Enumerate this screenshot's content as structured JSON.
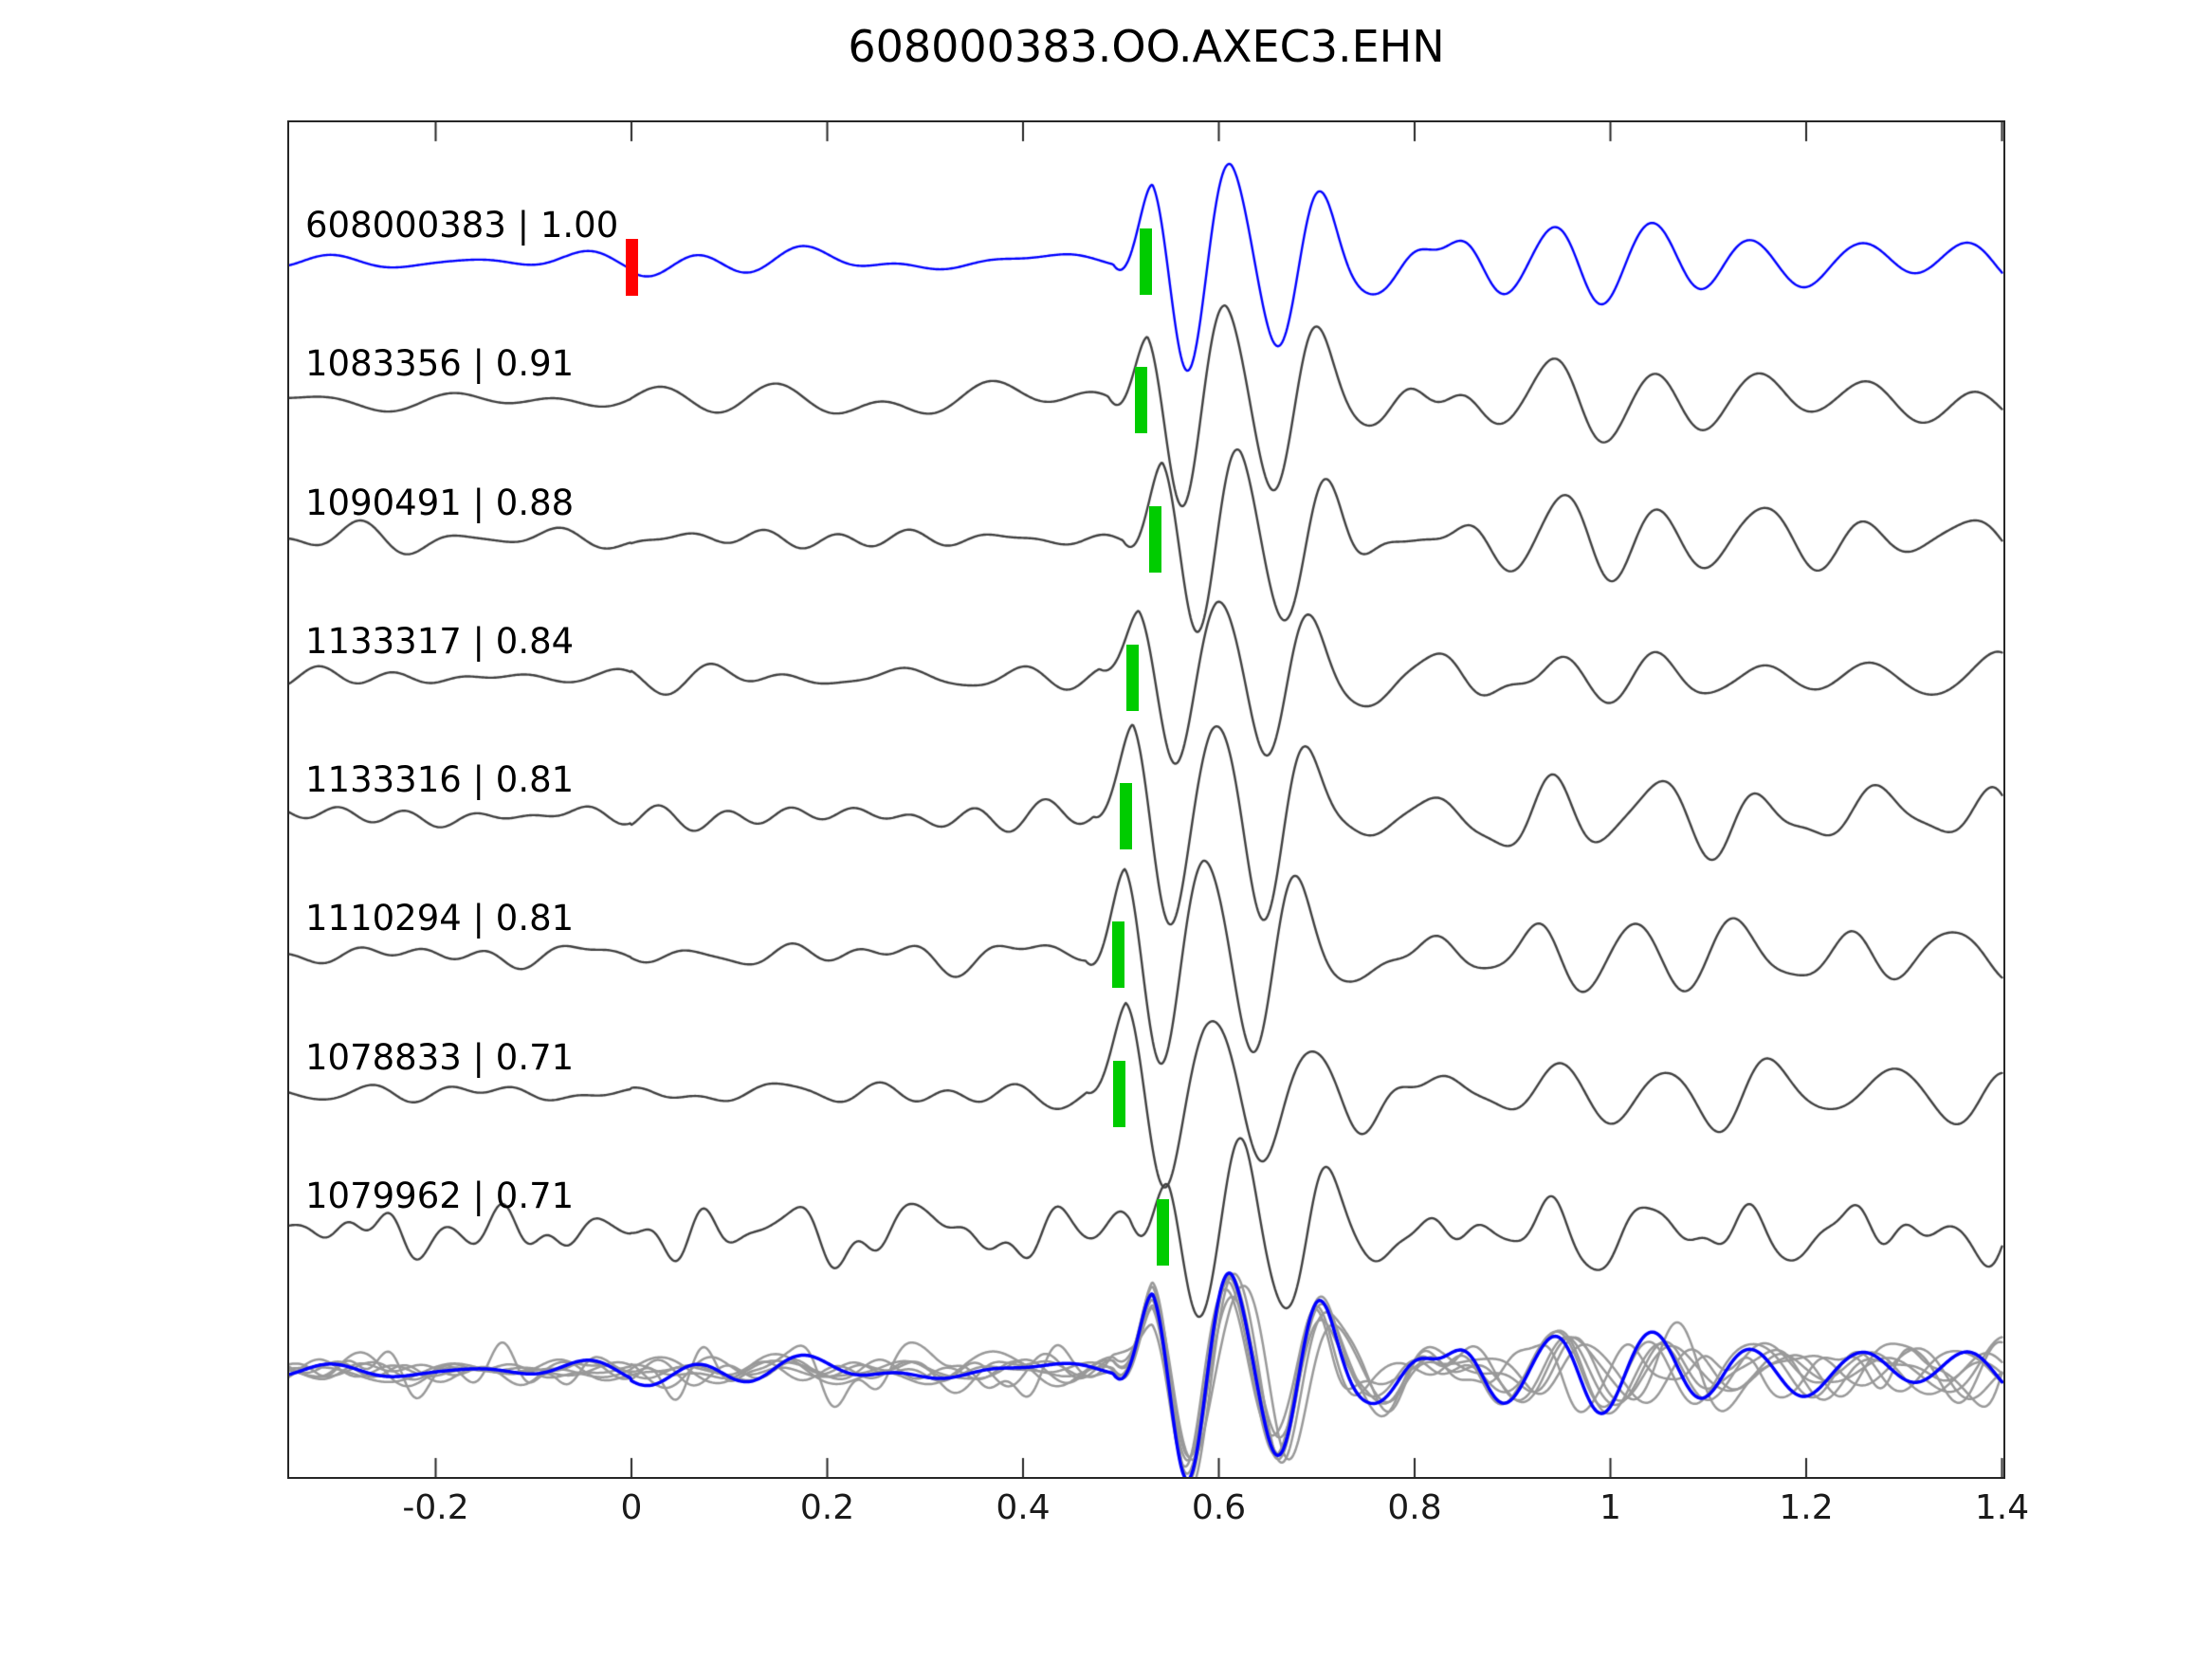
{
  "title": "608000383.OO.AXEC3.EHN",
  "colors": {
    "template_trace": "#0000ff",
    "detection_trace": "#404040",
    "overlay_gray": "#999999",
    "pick_marker_green": "#00cc00",
    "origin_marker_red": "#ff0000",
    "frame": "#262626",
    "text": "#000000",
    "background": "#ffffff"
  },
  "axis": {
    "xlim": [
      -0.35,
      1.4
    ],
    "tick_values": [
      -0.2,
      0,
      0.2,
      0.4,
      0.6,
      0.8,
      1,
      1.2,
      1.4
    ],
    "tick_labels": [
      "-0.2",
      "0",
      "0.2",
      "0.4",
      "0.6",
      "0.8",
      "1",
      "1.2",
      "1.4"
    ],
    "tick_direction": "in",
    "grid": false
  },
  "chart_data": {
    "type": "line",
    "subtype": "seismic-waveform-stack",
    "title": "608000383.OO.AXEC3.EHN",
    "x_range": [
      -0.35,
      1.4
    ],
    "x_ticks": [
      -0.2,
      0,
      0.2,
      0.4,
      0.6,
      0.8,
      1,
      1.2,
      1.4
    ],
    "legend": "none",
    "rows": 9,
    "template_origin_time": 0.0,
    "series": [
      {
        "id": "608000383",
        "correlation": 1.0,
        "label": "608000383 | 1.00",
        "role": "template",
        "color": "#0000ff",
        "pick_time": 0.525,
        "synth": {
          "seed": 11,
          "amp": 88,
          "noise": 6,
          "det": 1.0,
          "hf": 0
        }
      },
      {
        "id": "1083356",
        "correlation": 0.91,
        "label": "1083356 | 0.91",
        "role": "detection",
        "color": "#404040",
        "pick_time": 0.52,
        "synth": {
          "seed": 23,
          "amp": 85,
          "noise": 7,
          "det": 0.99,
          "hf": 0
        }
      },
      {
        "id": "1090491",
        "correlation": 0.88,
        "label": "1090491 | 0.88",
        "role": "detection",
        "color": "#404040",
        "pick_time": 0.535,
        "synth": {
          "seed": 37,
          "amp": 80,
          "noise": 7,
          "det": 1.01,
          "hf": 0
        }
      },
      {
        "id": "1133317",
        "correlation": 0.84,
        "label": "1133317 | 0.84",
        "role": "detection",
        "color": "#404040",
        "pick_time": 0.511,
        "synth": {
          "seed": 41,
          "amp": 72,
          "noise": 7,
          "det": 0.97,
          "hf": 0
        }
      },
      {
        "id": "1133316",
        "correlation": 0.81,
        "label": "1133316 | 0.81",
        "role": "detection",
        "color": "#404040",
        "pick_time": 0.505,
        "synth": {
          "seed": 53,
          "amp": 92,
          "noise": 8,
          "det": 0.96,
          "hf": 0
        }
      },
      {
        "id": "1110294",
        "correlation": 0.81,
        "label": "1110294 | 0.81",
        "role": "detection",
        "color": "#404040",
        "pick_time": 0.497,
        "synth": {
          "seed": 67,
          "amp": 90,
          "noise": 9,
          "det": 0.98,
          "hf": 0
        }
      },
      {
        "id": "1078833",
        "correlation": 0.71,
        "label": "1078833 | 0.71",
        "role": "detection",
        "color": "#404040",
        "pick_time": 0.498,
        "synth": {
          "seed": 79,
          "amp": 78,
          "noise": 8,
          "det": 0.93,
          "hf": 0
        }
      },
      {
        "id": "1079962",
        "correlation": 0.71,
        "label": "1079962 | 0.71",
        "role": "detection",
        "color": "#404040",
        "pick_time": 0.542,
        "synth": {
          "seed": 97,
          "amp": 62,
          "noise": 13,
          "det": 1.05,
          "hf": 0.7
        }
      }
    ],
    "overlay_row": {
      "description": "all traces aligned on pick and superimposed",
      "gray_color": "#999999",
      "highlight_color": "#0000ff",
      "align_to_pick": 0.525
    },
    "markers": {
      "origin": {
        "trace_index": 0,
        "time": 0.0,
        "color": "#ff0000"
      },
      "picks_color": "#00cc00"
    }
  }
}
